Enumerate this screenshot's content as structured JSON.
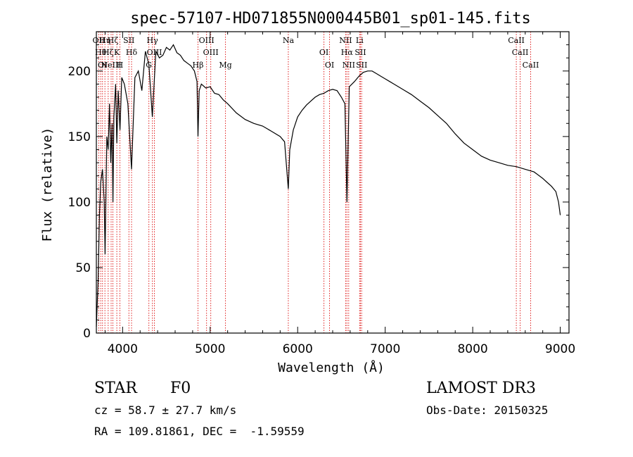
{
  "chart_data": {
    "type": "line",
    "title": "spec-57107-HD071855N000445B01_sp01-145.fits",
    "xlabel": "Wavelength (Å)",
    "ylabel": "Flux (relative)",
    "xlim": [
      3700,
      9100
    ],
    "ylim": [
      0,
      230
    ],
    "xticks": [
      4000,
      5000,
      6000,
      7000,
      8000,
      9000
    ],
    "yticks": [
      0,
      50,
      100,
      150,
      200
    ],
    "grid": false,
    "legend": "none",
    "series": [
      {
        "color": "#000000",
        "x": [
          3700,
          3720,
          3735,
          3750,
          3770,
          3790,
          3800,
          3820,
          3835,
          3850,
          3865,
          3880,
          3890,
          3900,
          3920,
          3934,
          3950,
          3970,
          3990,
          4020,
          4060,
          4102,
          4140,
          4180,
          4220,
          4260,
          4300,
          4340,
          4380,
          4420,
          4460,
          4500,
          4540,
          4580,
          4620,
          4660,
          4700,
          4740,
          4780,
          4820,
          4850,
          4861,
          4875,
          4900,
          4950,
          5000,
          5050,
          5100,
          5150,
          5200,
          5300,
          5400,
          5500,
          5600,
          5700,
          5800,
          5850,
          5893,
          5910,
          5950,
          6000,
          6050,
          6100,
          6150,
          6200,
          6250,
          6300,
          6350,
          6400,
          6450,
          6500,
          6540,
          6563,
          6590,
          6650,
          6700,
          6750,
          6800,
          6850,
          6900,
          6950,
          7000,
          7050,
          7100,
          7200,
          7300,
          7400,
          7500,
          7600,
          7700,
          7800,
          7900,
          8000,
          8100,
          8200,
          8300,
          8400,
          8500,
          8600,
          8700,
          8800,
          8850,
          8900,
          8950,
          8980,
          9000
        ],
        "y": [
          5,
          40,
          90,
          115,
          125,
          100,
          60,
          150,
          140,
          175,
          130,
          160,
          100,
          165,
          190,
          145,
          185,
          155,
          195,
          190,
          175,
          125,
          195,
          200,
          185,
          215,
          205,
          165,
          215,
          210,
          212,
          218,
          216,
          220,
          214,
          212,
          208,
          206,
          204,
          200,
          192,
          150,
          185,
          190,
          187,
          188,
          183,
          182,
          178,
          175,
          168,
          163,
          160,
          158,
          154,
          150,
          146,
          110,
          140,
          155,
          165,
          170,
          174,
          177,
          180,
          182,
          183,
          185,
          186,
          185,
          180,
          175,
          100,
          188,
          192,
          196,
          199,
          200,
          200,
          198,
          196,
          194,
          192,
          190,
          186,
          182,
          177,
          172,
          166,
          160,
          152,
          145,
          140,
          135,
          132,
          130,
          128,
          127,
          125,
          123,
          118,
          115,
          112,
          108,
          100,
          90
        ]
      }
    ],
    "line_markers": [
      {
        "x": 3727,
        "label": "OII"
      },
      {
        "x": 3750,
        "label": "Hθ"
      },
      {
        "x": 3770,
        "label": "OI"
      },
      {
        "x": 3798,
        "label": "Hη"
      },
      {
        "x": 3835,
        "label": "Hζ"
      },
      {
        "x": 3869,
        "label": "NeIII"
      },
      {
        "x": 3889,
        "label": "Hζ"
      },
      {
        "x": 3934,
        "label": "K"
      },
      {
        "x": 3969,
        "label": "H"
      },
      {
        "x": 4072,
        "label": "SII"
      },
      {
        "x": 4102,
        "label": "Hδ"
      },
      {
        "x": 4300,
        "label": "G"
      },
      {
        "x": 4340,
        "label": "Hγ"
      },
      {
        "x": 4363,
        "label": "OIII"
      },
      {
        "x": 4861,
        "label": "Hβ"
      },
      {
        "x": 4959,
        "label": "OIII"
      },
      {
        "x": 5007,
        "label": "OIII"
      },
      {
        "x": 5175,
        "label": "Mg"
      },
      {
        "x": 5893,
        "label": "Na"
      },
      {
        "x": 6300,
        "label": "OI"
      },
      {
        "x": 6364,
        "label": "OI"
      },
      {
        "x": 6548,
        "label": "NII"
      },
      {
        "x": 6563,
        "label": "Hα"
      },
      {
        "x": 6583,
        "label": "NII"
      },
      {
        "x": 6708,
        "label": "Li"
      },
      {
        "x": 6717,
        "label": "SII"
      },
      {
        "x": 6731,
        "label": "SII"
      },
      {
        "x": 8498,
        "label": "CaII"
      },
      {
        "x": 8542,
        "label": "CaII"
      },
      {
        "x": 8662,
        "label": "CaII"
      }
    ]
  },
  "info": {
    "object_type": "STAR",
    "subclass": "F0",
    "survey": "LAMOST DR3",
    "redshift": "cz = 58.7 ± 27.7 km/s",
    "obs_date": "Obs-Date: 20150325",
    "coords": "RA = 109.81861, DEC =  -1.59559"
  }
}
